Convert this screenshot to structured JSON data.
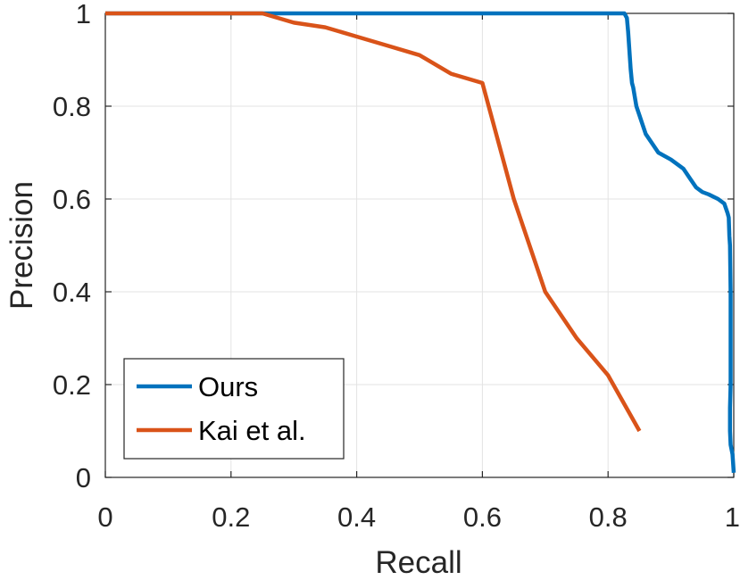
{
  "chart_data": {
    "type": "line",
    "title": "",
    "xlabel": "Recall",
    "ylabel": "Precision",
    "xlim": [
      0,
      1
    ],
    "ylim": [
      0,
      1
    ],
    "xticks": [
      0,
      0.2,
      0.4,
      0.6,
      0.8,
      1
    ],
    "yticks": [
      0,
      0.2,
      0.4,
      0.6,
      0.8,
      1
    ],
    "xtick_labels": [
      "0",
      "0.2",
      "0.4",
      "0.6",
      "0.8",
      "1"
    ],
    "ytick_labels": [
      "0",
      "0.2",
      "0.4",
      "0.6",
      "0.8",
      "1"
    ],
    "grid": true,
    "legend_position": "bottom-left",
    "series": [
      {
        "name": "Ours",
        "color": "#0072BD",
        "points": [
          [
            0,
            1
          ],
          [
            0.25,
            1
          ],
          [
            0.5,
            1
          ],
          [
            0.75,
            1
          ],
          [
            0.826,
            1
          ],
          [
            0.83,
            0.99
          ],
          [
            0.832,
            0.96
          ],
          [
            0.834,
            0.92
          ],
          [
            0.836,
            0.88
          ],
          [
            0.838,
            0.85
          ],
          [
            0.84,
            0.84
          ],
          [
            0.845,
            0.8
          ],
          [
            0.85,
            0.78
          ],
          [
            0.855,
            0.76
          ],
          [
            0.86,
            0.74
          ],
          [
            0.87,
            0.72
          ],
          [
            0.88,
            0.7
          ],
          [
            0.9,
            0.685
          ],
          [
            0.92,
            0.665
          ],
          [
            0.93,
            0.645
          ],
          [
            0.94,
            0.625
          ],
          [
            0.95,
            0.615
          ],
          [
            0.96,
            0.61
          ],
          [
            0.975,
            0.6
          ],
          [
            0.985,
            0.59
          ],
          [
            0.99,
            0.57
          ],
          [
            0.992,
            0.56
          ],
          [
            0.993,
            0.52
          ],
          [
            0.994,
            0.5
          ],
          [
            0.995,
            0.4
          ],
          [
            0.995,
            0.3
          ],
          [
            0.995,
            0.2
          ],
          [
            0.994,
            0.15
          ],
          [
            0.994,
            0.1
          ],
          [
            0.995,
            0.07
          ],
          [
            0.998,
            0.05
          ],
          [
            1.0,
            0.01
          ]
        ]
      },
      {
        "name": "Kai et al.",
        "color": "#D95319",
        "points": [
          [
            0,
            1
          ],
          [
            0.25,
            1
          ],
          [
            0.3,
            0.98
          ],
          [
            0.35,
            0.97
          ],
          [
            0.4,
            0.95
          ],
          [
            0.45,
            0.93
          ],
          [
            0.5,
            0.91
          ],
          [
            0.55,
            0.87
          ],
          [
            0.6,
            0.85
          ],
          [
            0.65,
            0.6
          ],
          [
            0.7,
            0.4
          ],
          [
            0.75,
            0.3
          ],
          [
            0.8,
            0.22
          ],
          [
            0.85,
            0.1
          ]
        ]
      }
    ]
  }
}
